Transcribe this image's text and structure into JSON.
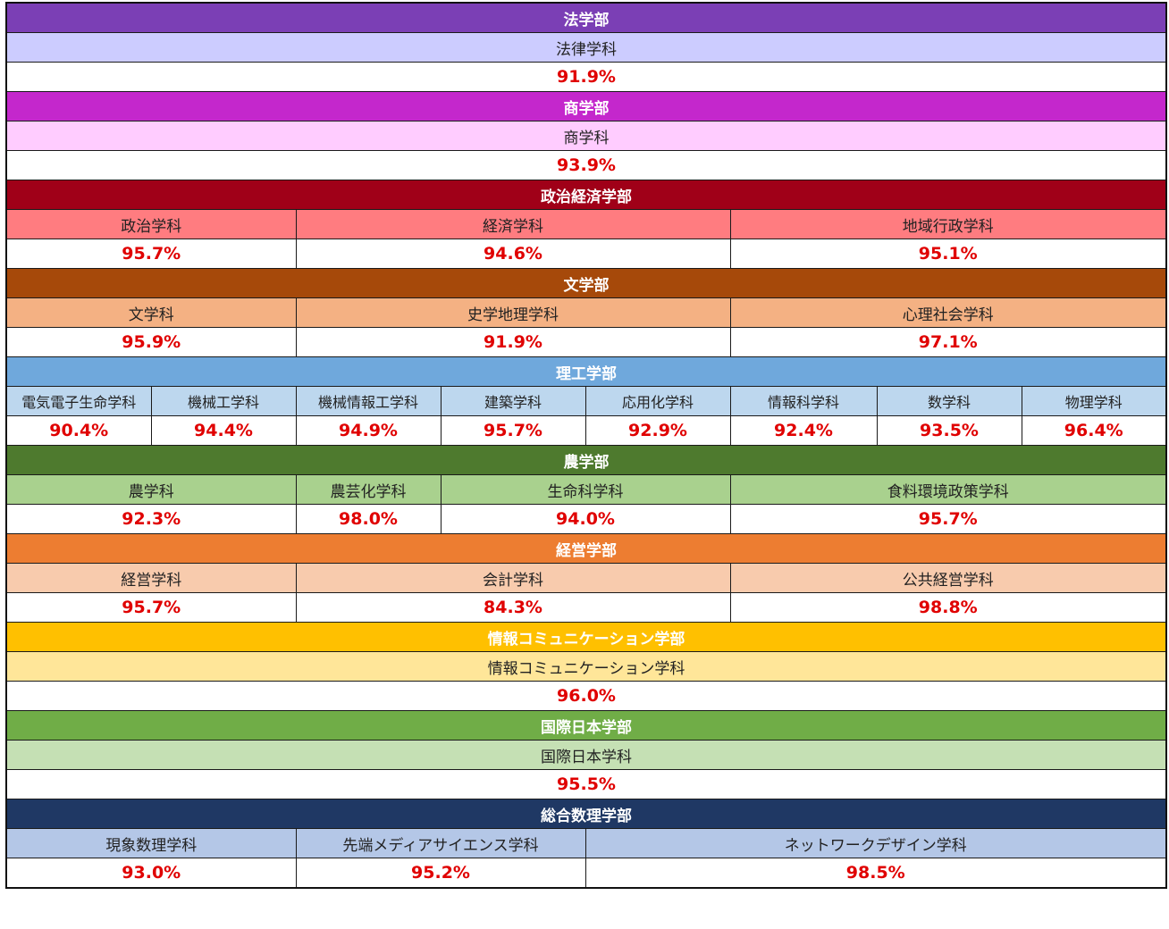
{
  "faculties": [
    {
      "name": "法学部",
      "header_color": "#7b3fb5",
      "dept_color": "#ccccff",
      "departments": [
        {
          "name": "法律学科",
          "rate": "91.9%",
          "span": 8
        }
      ]
    },
    {
      "name": "商学部",
      "header_color": "#c427cc",
      "dept_color": "#ffccff",
      "departments": [
        {
          "name": "商学科",
          "rate": "93.9%",
          "span": 8
        }
      ]
    },
    {
      "name": "政治経済学部",
      "header_color": "#a00018",
      "dept_color": "#ff7c80",
      "departments": [
        {
          "name": "政治学科",
          "rate": "95.7%",
          "span": 2
        },
        {
          "name": "経済学科",
          "rate": "94.6%",
          "span": 3
        },
        {
          "name": "地域行政学科",
          "rate": "95.1%",
          "span": 3
        }
      ]
    },
    {
      "name": "文学部",
      "header_color": "#a6490a",
      "dept_color": "#f4b183",
      "departments": [
        {
          "name": "文学科",
          "rate": "95.9%",
          "span": 2
        },
        {
          "name": "史学地理学科",
          "rate": "91.9%",
          "span": 3
        },
        {
          "name": "心理社会学科",
          "rate": "97.1%",
          "span": 3
        }
      ]
    },
    {
      "name": "理工学部",
      "header_color": "#6fa8dc",
      "dept_color": "#bdd7ee",
      "departments": [
        {
          "name": "電気電子生命学科",
          "rate": "90.4%",
          "span": 1
        },
        {
          "name": "機械工学科",
          "rate": "94.4%",
          "span": 1
        },
        {
          "name": "機械情報工学科",
          "rate": "94.9%",
          "span": 1
        },
        {
          "name": "建築学科",
          "rate": "95.7%",
          "span": 1
        },
        {
          "name": "応用化学科",
          "rate": "92.9%",
          "span": 1
        },
        {
          "name": "情報科学科",
          "rate": "92.4%",
          "span": 1
        },
        {
          "name": "数学科",
          "rate": "93.5%",
          "span": 1
        },
        {
          "name": "物理学科",
          "rate": "96.4%",
          "span": 1
        }
      ]
    },
    {
      "name": "農学部",
      "header_color": "#4e7a2e",
      "dept_color": "#a9d18e",
      "departments": [
        {
          "name": "農学科",
          "rate": "92.3%",
          "span": 2
        },
        {
          "name": "農芸化学科",
          "rate": "98.0%",
          "span": 1
        },
        {
          "name": "生命科学科",
          "rate": "94.0%",
          "span": 2
        },
        {
          "name": "食料環境政策学科",
          "rate": "95.7%",
          "span": 3
        }
      ]
    },
    {
      "name": "経営学部",
      "header_color": "#ed7d31",
      "dept_color": "#f8cbad",
      "departments": [
        {
          "name": "経営学科",
          "rate": "95.7%",
          "span": 2
        },
        {
          "name": "会計学科",
          "rate": "84.3%",
          "span": 3
        },
        {
          "name": "公共経営学科",
          "rate": "98.8%",
          "span": 3
        }
      ]
    },
    {
      "name": "情報コミュニケーション学部",
      "header_color": "#ffc000",
      "dept_color": "#ffe699",
      "departments": [
        {
          "name": "情報コミュニケーション学科",
          "rate": "96.0%",
          "span": 8
        }
      ]
    },
    {
      "name": "国際日本学部",
      "header_color": "#70ad47",
      "dept_color": "#c5e0b4",
      "departments": [
        {
          "name": "国際日本学科",
          "rate": "95.5%",
          "span": 8
        }
      ]
    },
    {
      "name": "総合数理学部",
      "header_color": "#1f3864",
      "dept_color": "#b4c7e7",
      "departments": [
        {
          "name": "現象数理学科",
          "rate": "93.0%",
          "span": 2
        },
        {
          "name": "先端メディアサイエンス学科",
          "rate": "95.2%",
          "span": 2
        },
        {
          "name": "ネットワークデザイン学科",
          "rate": "98.5%",
          "span": 4
        }
      ]
    }
  ]
}
